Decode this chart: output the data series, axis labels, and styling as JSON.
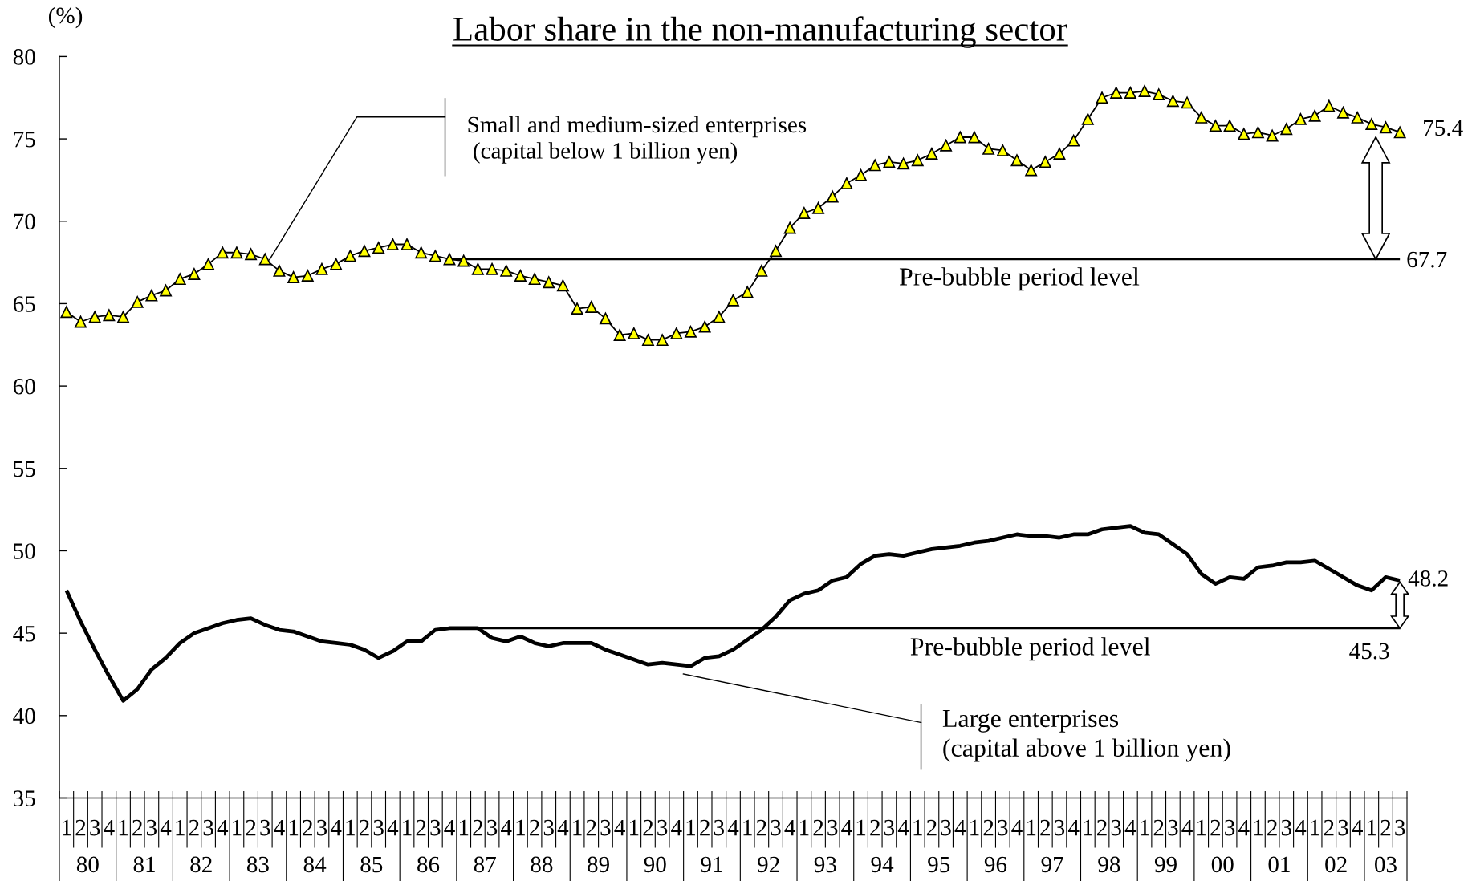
{
  "chart_data": {
    "type": "line",
    "title": "Labor share in the non-manufacturing sector",
    "ylabel": "(%)",
    "categories": [
      "1",
      "2",
      "3",
      "4",
      "1",
      "2",
      "3",
      "4",
      "1",
      "2",
      "3",
      "4",
      "1",
      "2",
      "3",
      "4",
      "1",
      "2",
      "3",
      "4",
      "1",
      "2",
      "3",
      "4",
      "1",
      "2",
      "3",
      "4",
      "1",
      "2",
      "3",
      "4",
      "1",
      "2",
      "3",
      "4",
      "1",
      "2",
      "3",
      "4",
      "1",
      "2",
      "3",
      "4",
      "1",
      "2",
      "3",
      "4",
      "1",
      "2",
      "3",
      "4",
      "1",
      "2",
      "3",
      "4",
      "1",
      "2",
      "3",
      "4",
      "1",
      "2",
      "3",
      "4",
      "1",
      "2",
      "3",
      "4",
      "1",
      "2",
      "3",
      "4",
      "1",
      "2",
      "3",
      "4",
      "1",
      "2",
      "3",
      "4",
      "1",
      "2",
      "3",
      "4",
      "1",
      "2",
      "3",
      "4",
      "1",
      "2",
      "3",
      "4",
      "1",
      "2",
      "3"
    ],
    "ylim": [
      35,
      80
    ],
    "yticks": [
      35,
      40,
      45,
      50,
      55,
      60,
      65,
      70,
      75,
      80
    ],
    "series": [
      {
        "name": "Small and medium-sized enterprises\n (capital below 1 billion yen)",
        "color": "#ffff00",
        "marker": "triangle",
        "values": [
          64.5,
          63.9,
          64.2,
          64.3,
          64.2,
          65.1,
          65.5,
          65.8,
          66.5,
          66.8,
          67.4,
          68.1,
          68.1,
          68.0,
          67.7,
          67.0,
          66.6,
          66.7,
          67.1,
          67.4,
          67.9,
          68.2,
          68.4,
          68.6,
          68.6,
          68.1,
          67.9,
          67.7,
          67.6,
          67.1,
          67.1,
          67.0,
          66.7,
          66.5,
          66.3,
          66.1,
          64.7,
          64.8,
          64.1,
          63.1,
          63.2,
          62.8,
          62.8,
          63.2,
          63.3,
          63.6,
          64.2,
          65.2,
          65.7,
          67.0,
          68.2,
          69.6,
          70.5,
          70.8,
          71.5,
          72.3,
          72.8,
          73.4,
          73.6,
          73.5,
          73.7,
          74.1,
          74.6,
          75.1,
          75.1,
          74.4,
          74.3,
          73.7,
          73.1,
          73.6,
          74.1,
          74.9,
          76.2,
          77.5,
          77.8,
          77.8,
          77.9,
          77.7,
          77.3,
          77.2,
          76.3,
          75.8,
          75.8,
          75.3,
          75.4,
          75.2,
          75.6,
          76.2,
          76.4,
          77.0,
          76.6,
          76.3,
          75.9,
          75.7,
          75.4
        ],
        "value_labels": [
          null,
          null,
          null,
          null,
          null,
          null,
          null,
          null,
          null,
          null,
          null,
          null,
          null,
          null,
          null,
          null,
          null,
          null,
          null,
          null,
          null,
          null,
          null,
          null,
          null,
          null,
          null,
          null,
          null,
          null,
          null,
          null,
          null,
          null,
          null,
          null,
          null,
          null,
          null,
          null,
          null,
          null,
          null,
          null,
          null,
          null,
          null,
          null,
          null,
          null,
          null,
          null,
          null,
          null,
          null,
          null,
          null,
          null,
          null,
          null,
          null,
          null,
          null,
          null,
          null,
          null,
          null,
          null,
          null,
          null,
          null,
          null,
          null,
          null,
          null,
          null,
          null,
          null,
          null,
          null,
          null,
          null,
          null,
          null,
          null,
          null,
          null,
          null,
          null,
          null,
          null,
          null,
          null,
          null,
          "75.4"
        ]
      },
      {
        "name": "Pre-bubble period level",
        "color": "#000000",
        "marker": "none",
        "values": [
          null,
          null,
          null,
          null,
          null,
          null,
          null,
          null,
          null,
          null,
          null,
          null,
          null,
          null,
          null,
          null,
          null,
          null,
          null,
          null,
          null,
          null,
          null,
          null,
          null,
          null,
          null,
          67.7,
          67.7,
          67.7,
          67.7,
          67.7,
          67.7,
          67.7,
          67.7,
          67.7,
          67.7,
          67.7,
          67.7,
          67.7,
          67.7,
          67.7,
          67.7,
          67.7,
          67.7,
          67.7,
          67.7,
          67.7,
          67.7,
          67.7,
          67.7,
          67.7,
          67.7,
          67.7,
          67.7,
          67.7,
          67.7,
          67.7,
          67.7,
          67.7,
          67.7,
          67.7,
          67.7,
          67.7,
          67.7,
          67.7,
          67.7,
          67.7,
          67.7,
          67.7,
          67.7,
          67.7,
          67.7,
          67.7,
          67.7,
          67.7,
          67.7,
          67.7,
          67.7,
          67.7,
          67.7,
          67.7,
          67.7,
          67.7,
          67.7,
          67.7,
          67.7,
          67.7,
          67.7,
          67.7,
          67.7,
          67.7,
          67.7,
          67.7,
          67.7
        ],
        "value_labels": [
          null,
          null,
          null,
          null,
          null,
          null,
          null,
          null,
          null,
          null,
          null,
          null,
          null,
          null,
          null,
          null,
          null,
          null,
          null,
          null,
          null,
          null,
          null,
          null,
          null,
          null,
          null,
          null,
          null,
          null,
          null,
          null,
          null,
          null,
          null,
          null,
          null,
          null,
          null,
          null,
          null,
          null,
          null,
          null,
          null,
          null,
          null,
          null,
          null,
          null,
          null,
          null,
          null,
          null,
          null,
          null,
          null,
          null,
          null,
          null,
          null,
          null,
          null,
          null,
          null,
          null,
          null,
          null,
          null,
          null,
          null,
          null,
          null,
          null,
          null,
          null,
          null,
          null,
          null,
          null,
          null,
          null,
          null,
          null,
          null,
          null,
          null,
          null,
          null,
          null,
          null,
          null,
          null,
          null,
          "67.7"
        ]
      },
      {
        "name": "Large enterprises\n(capital above 1 billion yen)",
        "color": "#000000",
        "marker": "none",
        "values": [
          47.6,
          45.7,
          44.0,
          42.4,
          40.9,
          41.6,
          42.8,
          43.5,
          44.4,
          45.0,
          45.3,
          45.6,
          45.8,
          45.9,
          45.5,
          45.2,
          45.1,
          44.8,
          44.5,
          44.4,
          44.3,
          44.0,
          43.5,
          43.9,
          44.5,
          44.5,
          45.2,
          45.3,
          45.3,
          45.3,
          44.7,
          44.5,
          44.8,
          44.4,
          44.2,
          44.4,
          44.4,
          44.4,
          44.0,
          43.7,
          43.4,
          43.1,
          43.2,
          43.1,
          43.0,
          43.5,
          43.6,
          44.0,
          44.6,
          45.2,
          46.0,
          47.0,
          47.4,
          47.6,
          48.2,
          48.4,
          49.2,
          49.7,
          49.8,
          49.7,
          49.9,
          50.1,
          50.2,
          50.3,
          50.5,
          50.6,
          50.8,
          51.0,
          50.9,
          50.9,
          50.8,
          51.0,
          51.0,
          51.3,
          51.4,
          51.5,
          51.1,
          51.0,
          50.4,
          49.8,
          48.6,
          48.0,
          48.4,
          48.3,
          49.0,
          49.1,
          49.3,
          49.3,
          49.4,
          48.9,
          48.4,
          47.9,
          47.6,
          48.4,
          48.2
        ],
        "value_labels": [
          null,
          null,
          null,
          null,
          null,
          null,
          null,
          null,
          null,
          null,
          null,
          null,
          null,
          null,
          null,
          null,
          null,
          null,
          null,
          null,
          null,
          null,
          null,
          null,
          null,
          null,
          null,
          null,
          null,
          null,
          null,
          null,
          null,
          null,
          null,
          null,
          null,
          null,
          null,
          null,
          null,
          null,
          null,
          null,
          null,
          null,
          null,
          null,
          null,
          null,
          null,
          null,
          null,
          null,
          null,
          null,
          null,
          null,
          null,
          null,
          null,
          null,
          null,
          null,
          null,
          null,
          null,
          null,
          null,
          null,
          null,
          null,
          null,
          null,
          null,
          null,
          null,
          null,
          null,
          null,
          null,
          null,
          null,
          null,
          null,
          null,
          null,
          null,
          null,
          null,
          null,
          null,
          null,
          null,
          "48.2"
        ]
      },
      {
        "name": "Pre-bubble period level",
        "color": "#000000",
        "marker": "none",
        "values": [
          null,
          null,
          null,
          null,
          null,
          null,
          null,
          null,
          null,
          null,
          null,
          null,
          null,
          null,
          null,
          null,
          null,
          null,
          null,
          null,
          null,
          null,
          null,
          null,
          null,
          null,
          null,
          null,
          null,
          45.3,
          45.3,
          45.3,
          45.3,
          45.3,
          45.3,
          45.3,
          45.3,
          45.3,
          45.3,
          45.3,
          45.3,
          45.3,
          45.3,
          45.3,
          45.3,
          45.3,
          45.3,
          45.3,
          45.3,
          45.3,
          45.3,
          45.3,
          45.3,
          45.3,
          45.3,
          45.3,
          45.3,
          45.3,
          45.3,
          45.3,
          45.3,
          45.3,
          45.3,
          45.3,
          45.3,
          45.3,
          45.3,
          45.3,
          45.3,
          45.3,
          45.3,
          45.3,
          45.3,
          45.3,
          45.3,
          45.3,
          45.3,
          45.3,
          45.3,
          45.3,
          45.3,
          45.3,
          45.3,
          45.3,
          45.3,
          45.3,
          45.3,
          45.3,
          45.3,
          45.3,
          45.3,
          45.3,
          45.3,
          45.3,
          45.3
        ],
        "value_labels": [
          null,
          null,
          null,
          null,
          null,
          null,
          null,
          null,
          null,
          null,
          null,
          null,
          null,
          null,
          null,
          null,
          null,
          null,
          null,
          null,
          null,
          null,
          null,
          null,
          null,
          null,
          null,
          null,
          null,
          null,
          null,
          null,
          null,
          null,
          null,
          null,
          null,
          null,
          null,
          null,
          null,
          null,
          null,
          null,
          null,
          null,
          null,
          null,
          null,
          null,
          null,
          null,
          null,
          null,
          null,
          null,
          null,
          null,
          null,
          null,
          null,
          null,
          null,
          null,
          null,
          null,
          null,
          null,
          null,
          null,
          null,
          null,
          null,
          null,
          null,
          null,
          null,
          null,
          null,
          null,
          null,
          null,
          null,
          null,
          null,
          null,
          null,
          null,
          null,
          null,
          null,
          null,
          null,
          null,
          "45.3"
        ]
      }
    ],
    "annotations": [
      "80",
      "81",
      "82",
      "83",
      "84",
      "85",
      "86",
      "87",
      "88",
      "89",
      "90",
      "91",
      "92",
      "93",
      "94",
      "95",
      "96",
      "97",
      "98",
      "99",
      "00",
      "01",
      "02",
      "03"
    ]
  }
}
